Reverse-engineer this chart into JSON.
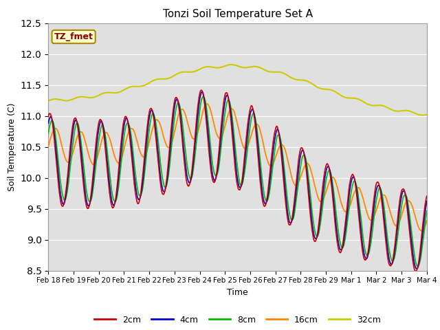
{
  "title": "Tonzi Soil Temperature Set A",
  "xlabel": "Time",
  "ylabel": "Soil Temperature (C)",
  "ylim": [
    8.5,
    12.5
  ],
  "yticks": [
    8.5,
    9.0,
    9.5,
    10.0,
    10.5,
    11.0,
    11.5,
    12.0,
    12.5
  ],
  "colors": {
    "2cm": "#cc0000",
    "4cm": "#0000cc",
    "8cm": "#00bb00",
    "16cm": "#ff8800",
    "32cm": "#cccc00"
  },
  "bg_color": "#e0e0e0",
  "annotation_text": "TZ_fmet",
  "annotation_color": "#8b0000",
  "annotation_bg": "#ffffcc",
  "tick_labels": [
    "Feb 18",
    "Feb 19",
    "Feb 20",
    "Feb 21",
    "Feb 22",
    "Feb 23",
    "Feb 24",
    "Feb 25",
    "Feb 26",
    "Feb 27",
    "Feb 28",
    "Feb 29",
    "Mar 1",
    "Mar 2",
    "Mar 3",
    "Mar 4"
  ]
}
